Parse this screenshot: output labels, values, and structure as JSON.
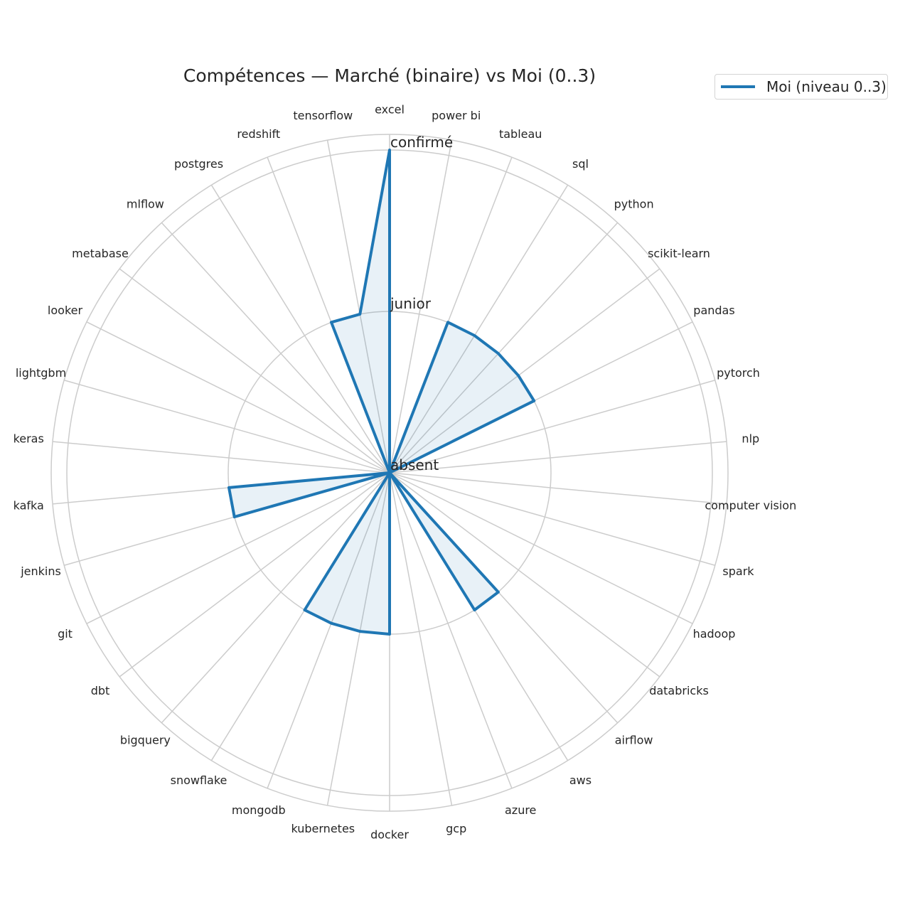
{
  "chart_data": {
    "type": "radar",
    "title": "Compétences — Marché (binaire) vs Moi (0..3)",
    "categories": [
      "excel",
      "power bi",
      "tableau",
      "sql",
      "python",
      "scikit-learn",
      "pandas",
      "pytorch",
      "nlp",
      "computer vision",
      "spark",
      "hadoop",
      "databricks",
      "airflow",
      "aws",
      "azure",
      "gcp",
      "docker",
      "kubernetes",
      "mongodb",
      "snowflake",
      "bigquery",
      "dbt",
      "git",
      "jenkins",
      "kafka",
      "keras",
      "lightgbm",
      "looker",
      "metabase",
      "mlflow",
      "postgres",
      "redshift",
      "tensorflow"
    ],
    "series": [
      {
        "name": "Moi (niveau 0..3)",
        "values": [
          2,
          0,
          1,
          1,
          1,
          1,
          1,
          0,
          0,
          0,
          0,
          0,
          0,
          1,
          1,
          0,
          0,
          1,
          1,
          1,
          1,
          0,
          0,
          0,
          1,
          1,
          0,
          0,
          0,
          0,
          0,
          0,
          1,
          1
        ],
        "color": "#1f77b4"
      }
    ],
    "rlim": [
      0,
      2
    ],
    "radial_ticks": [
      {
        "value": 0,
        "label": "absent"
      },
      {
        "value": 1,
        "label": "junior"
      },
      {
        "value": 2,
        "label": "confirmé"
      }
    ],
    "grid": true,
    "legend": "top-right"
  }
}
